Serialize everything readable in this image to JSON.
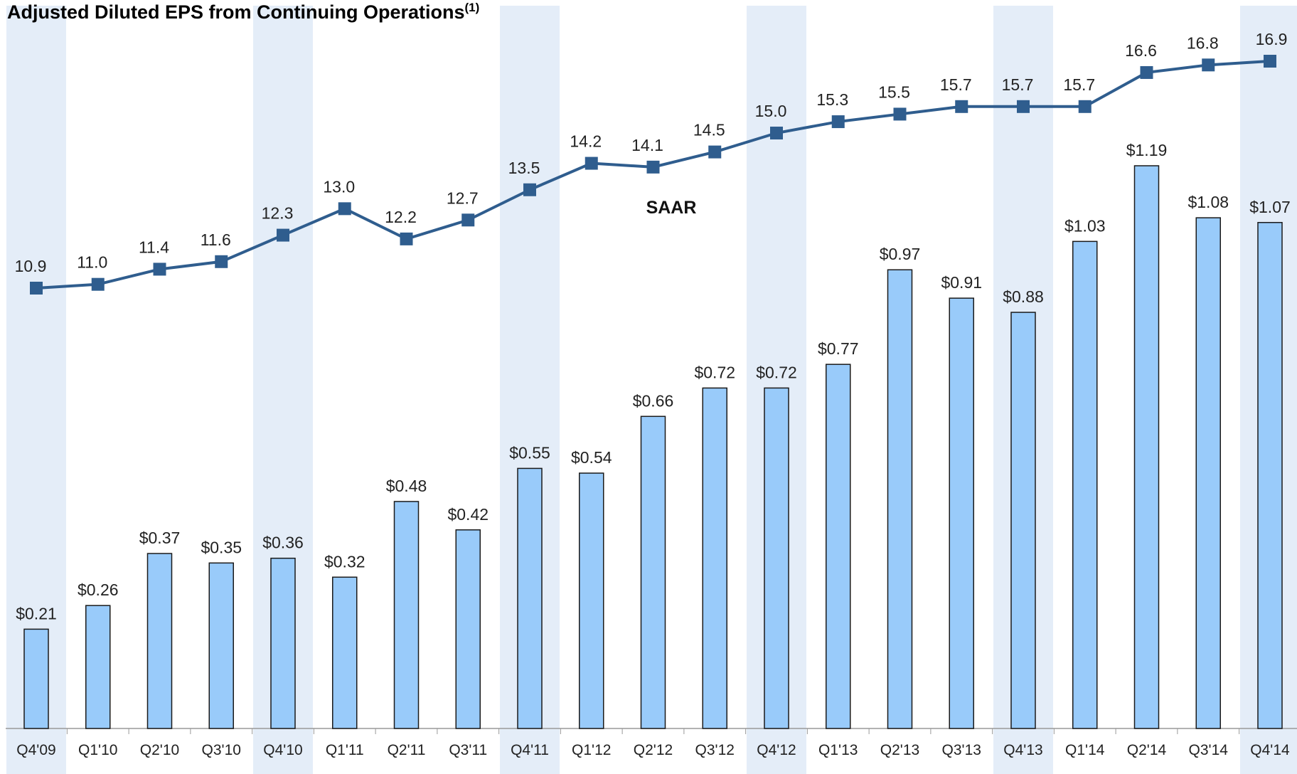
{
  "chart_data": {
    "type": "bar_line",
    "title": "Adjusted Diluted EPS from Continuing Operations",
    "title_note": "(1)",
    "categories": [
      "Q4'09",
      "Q1'10",
      "Q2'10",
      "Q3'10",
      "Q4'10",
      "Q1'11",
      "Q2'11",
      "Q3'11",
      "Q4'11",
      "Q1'12",
      "Q2'12",
      "Q3'12",
      "Q4'12",
      "Q1'13",
      "Q2'13",
      "Q3'13",
      "Q4'13",
      "Q1'14",
      "Q2'14",
      "Q3'14",
      "Q4'14"
    ],
    "series": [
      {
        "type": "bar",
        "color": "#99cbfa",
        "values": [
          0.21,
          0.26,
          0.37,
          0.35,
          0.36,
          0.32,
          0.48,
          0.42,
          0.55,
          0.54,
          0.66,
          0.72,
          0.72,
          0.77,
          0.97,
          0.91,
          0.88,
          1.03,
          1.19,
          1.08,
          1.07
        ],
        "value_labels": [
          "$0.21",
          "$0.26",
          "$0.37",
          "$0.35",
          "$0.36",
          "$0.32",
          "$0.48",
          "$0.42",
          "$0.55",
          "$0.54",
          "$0.66",
          "$0.72",
          "$0.72",
          "$0.77",
          "$0.97",
          "$0.91",
          "$0.88",
          "$1.03",
          "$1.19",
          "$1.08",
          "$1.07"
        ]
      },
      {
        "type": "line",
        "name": "SAAR",
        "color": "#2f5d8e",
        "values": [
          10.9,
          11.0,
          11.4,
          11.6,
          12.3,
          13.0,
          12.2,
          12.7,
          13.5,
          14.2,
          14.1,
          14.5,
          15.0,
          15.3,
          15.5,
          15.7,
          15.7,
          15.7,
          16.6,
          16.8,
          16.9
        ],
        "value_labels": [
          "10.9",
          "11.0",
          "11.4",
          "11.6",
          "12.3",
          "13.0",
          "12.2",
          "12.7",
          "13.5",
          "14.2",
          "14.1",
          "14.5",
          "15.0",
          "15.3",
          "15.5",
          "15.7",
          "15.7",
          "15.7",
          "16.6",
          "16.8",
          "16.9"
        ]
      }
    ]
  }
}
